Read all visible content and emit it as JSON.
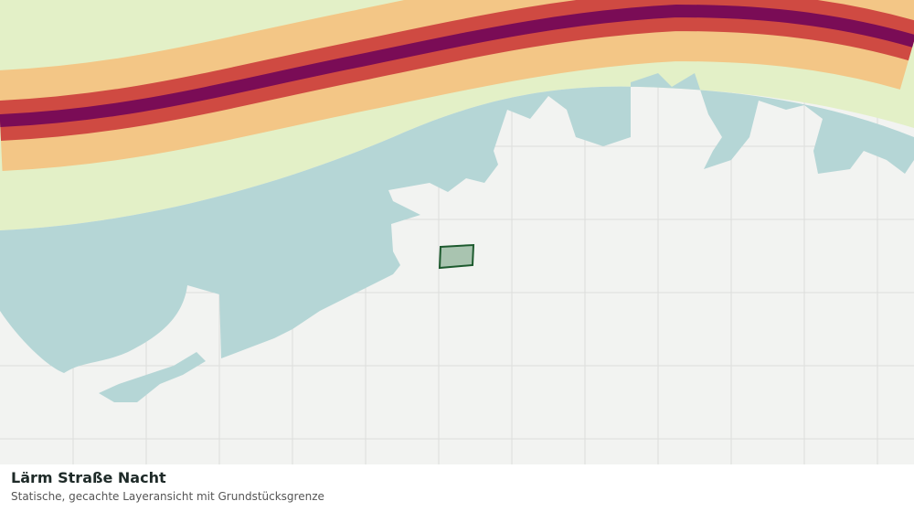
{
  "caption": {
    "title": "Lärm Straße Nacht",
    "subtitle": "Statische, gecachte Layeransicht mit Grundstücksgrenze"
  }
}
